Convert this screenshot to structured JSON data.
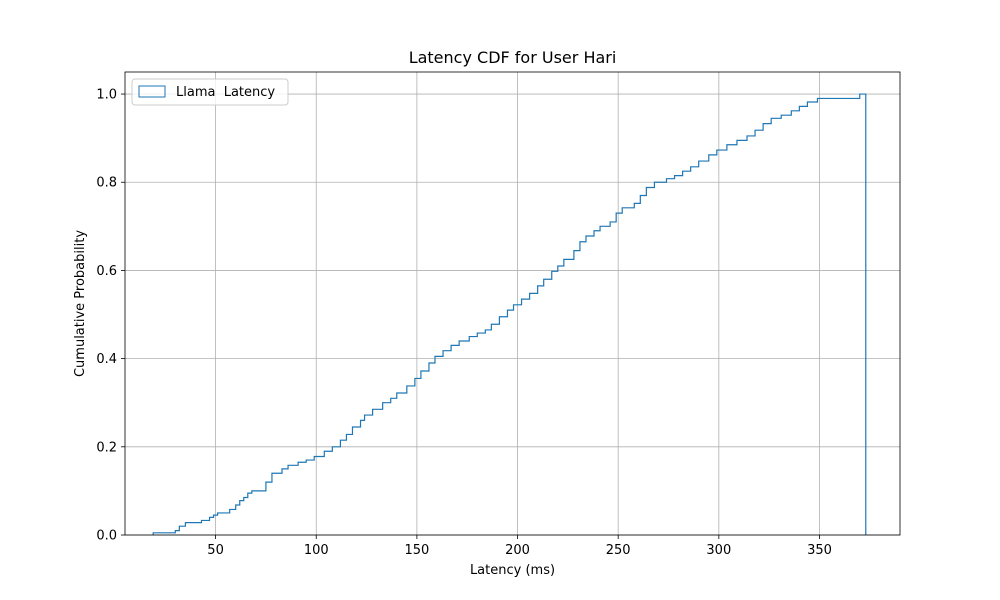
{
  "chart_data": {
    "type": "line",
    "title": "Latency CDF for User Hari",
    "xlabel": "Latency (ms)",
    "ylabel": "Cumulative Probability",
    "xlim": [
      5,
      390
    ],
    "ylim": [
      0,
      1.05
    ],
    "xticks": [
      50,
      100,
      150,
      200,
      250,
      300,
      350
    ],
    "xtick_labels": [
      "50",
      "100",
      "150",
      "200",
      "250",
      "300",
      "350"
    ],
    "yticks": [
      0,
      0.2,
      0.4,
      0.6,
      0.8,
      1.0
    ],
    "ytick_labels": [
      "0.0",
      "0.2",
      "0.4",
      "0.6",
      "0.8",
      "1.0"
    ],
    "grid": true,
    "legend_position": "top-left",
    "series": [
      {
        "name": "Llama  Latency",
        "color": "#1f77b4",
        "step": true,
        "points": [
          [
            19,
            0.0
          ],
          [
            19,
            0.005
          ],
          [
            30,
            0.005
          ],
          [
            30,
            0.01
          ],
          [
            32,
            0.01
          ],
          [
            32,
            0.02
          ],
          [
            35,
            0.02
          ],
          [
            35,
            0.028
          ],
          [
            43,
            0.028
          ],
          [
            43,
            0.033
          ],
          [
            47,
            0.033
          ],
          [
            47,
            0.04
          ],
          [
            49,
            0.04
          ],
          [
            49,
            0.045
          ],
          [
            51,
            0.045
          ],
          [
            51,
            0.05
          ],
          [
            57,
            0.05
          ],
          [
            57,
            0.058
          ],
          [
            60,
            0.058
          ],
          [
            60,
            0.068
          ],
          [
            62,
            0.068
          ],
          [
            62,
            0.078
          ],
          [
            64,
            0.078
          ],
          [
            64,
            0.085
          ],
          [
            66,
            0.085
          ],
          [
            66,
            0.095
          ],
          [
            68,
            0.095
          ],
          [
            68,
            0.1
          ],
          [
            75,
            0.1
          ],
          [
            75,
            0.12
          ],
          [
            78,
            0.12
          ],
          [
            78,
            0.14
          ],
          [
            83,
            0.14
          ],
          [
            83,
            0.15
          ],
          [
            86,
            0.15
          ],
          [
            86,
            0.158
          ],
          [
            91,
            0.158
          ],
          [
            91,
            0.165
          ],
          [
            95,
            0.165
          ],
          [
            95,
            0.17
          ],
          [
            99,
            0.17
          ],
          [
            99,
            0.178
          ],
          [
            104,
            0.178
          ],
          [
            104,
            0.19
          ],
          [
            108,
            0.19
          ],
          [
            108,
            0.2
          ],
          [
            112,
            0.2
          ],
          [
            112,
            0.215
          ],
          [
            115,
            0.215
          ],
          [
            115,
            0.228
          ],
          [
            118,
            0.228
          ],
          [
            118,
            0.245
          ],
          [
            122,
            0.245
          ],
          [
            122,
            0.26
          ],
          [
            124,
            0.26
          ],
          [
            124,
            0.272
          ],
          [
            128,
            0.272
          ],
          [
            128,
            0.285
          ],
          [
            133,
            0.285
          ],
          [
            133,
            0.3
          ],
          [
            137,
            0.3
          ],
          [
            137,
            0.31
          ],
          [
            140,
            0.31
          ],
          [
            140,
            0.322
          ],
          [
            145,
            0.322
          ],
          [
            145,
            0.338
          ],
          [
            149,
            0.338
          ],
          [
            149,
            0.355
          ],
          [
            152,
            0.355
          ],
          [
            152,
            0.372
          ],
          [
            156,
            0.372
          ],
          [
            156,
            0.39
          ],
          [
            159,
            0.39
          ],
          [
            159,
            0.405
          ],
          [
            163,
            0.405
          ],
          [
            163,
            0.418
          ],
          [
            167,
            0.418
          ],
          [
            167,
            0.43
          ],
          [
            171,
            0.43
          ],
          [
            171,
            0.44
          ],
          [
            176,
            0.44
          ],
          [
            176,
            0.45
          ],
          [
            180,
            0.45
          ],
          [
            180,
            0.458
          ],
          [
            184,
            0.458
          ],
          [
            184,
            0.465
          ],
          [
            187,
            0.465
          ],
          [
            187,
            0.478
          ],
          [
            191,
            0.478
          ],
          [
            191,
            0.495
          ],
          [
            195,
            0.495
          ],
          [
            195,
            0.51
          ],
          [
            198,
            0.51
          ],
          [
            198,
            0.522
          ],
          [
            202,
            0.522
          ],
          [
            202,
            0.535
          ],
          [
            206,
            0.535
          ],
          [
            206,
            0.548
          ],
          [
            210,
            0.548
          ],
          [
            210,
            0.565
          ],
          [
            213,
            0.565
          ],
          [
            213,
            0.58
          ],
          [
            217,
            0.58
          ],
          [
            217,
            0.598
          ],
          [
            220,
            0.598
          ],
          [
            220,
            0.61
          ],
          [
            223,
            0.61
          ],
          [
            223,
            0.625
          ],
          [
            228,
            0.625
          ],
          [
            228,
            0.645
          ],
          [
            231,
            0.645
          ],
          [
            231,
            0.665
          ],
          [
            234,
            0.665
          ],
          [
            234,
            0.678
          ],
          [
            238,
            0.678
          ],
          [
            238,
            0.69
          ],
          [
            241,
            0.69
          ],
          [
            241,
            0.7
          ],
          [
            246,
            0.7
          ],
          [
            246,
            0.71
          ],
          [
            249,
            0.71
          ],
          [
            249,
            0.73
          ],
          [
            252,
            0.73
          ],
          [
            252,
            0.742
          ],
          [
            258,
            0.742
          ],
          [
            258,
            0.752
          ],
          [
            261,
            0.752
          ],
          [
            261,
            0.77
          ],
          [
            264,
            0.77
          ],
          [
            264,
            0.788
          ],
          [
            268,
            0.788
          ],
          [
            268,
            0.8
          ],
          [
            274,
            0.8
          ],
          [
            274,
            0.808
          ],
          [
            278,
            0.808
          ],
          [
            278,
            0.815
          ],
          [
            282,
            0.815
          ],
          [
            282,
            0.825
          ],
          [
            286,
            0.825
          ],
          [
            286,
            0.835
          ],
          [
            290,
            0.835
          ],
          [
            290,
            0.848
          ],
          [
            295,
            0.848
          ],
          [
            295,
            0.862
          ],
          [
            299,
            0.862
          ],
          [
            299,
            0.873
          ],
          [
            304,
            0.873
          ],
          [
            304,
            0.885
          ],
          [
            309,
            0.885
          ],
          [
            309,
            0.895
          ],
          [
            314,
            0.895
          ],
          [
            314,
            0.905
          ],
          [
            318,
            0.905
          ],
          [
            318,
            0.918
          ],
          [
            322,
            0.918
          ],
          [
            322,
            0.933
          ],
          [
            326,
            0.933
          ],
          [
            326,
            0.945
          ],
          [
            331,
            0.945
          ],
          [
            331,
            0.952
          ],
          [
            336,
            0.952
          ],
          [
            336,
            0.962
          ],
          [
            340,
            0.962
          ],
          [
            340,
            0.972
          ],
          [
            344,
            0.972
          ],
          [
            344,
            0.982
          ],
          [
            349,
            0.982
          ],
          [
            349,
            0.99
          ],
          [
            370,
            0.99
          ],
          [
            370,
            1.0
          ],
          [
            373,
            1.0
          ],
          [
            373,
            0.0
          ]
        ]
      }
    ]
  }
}
